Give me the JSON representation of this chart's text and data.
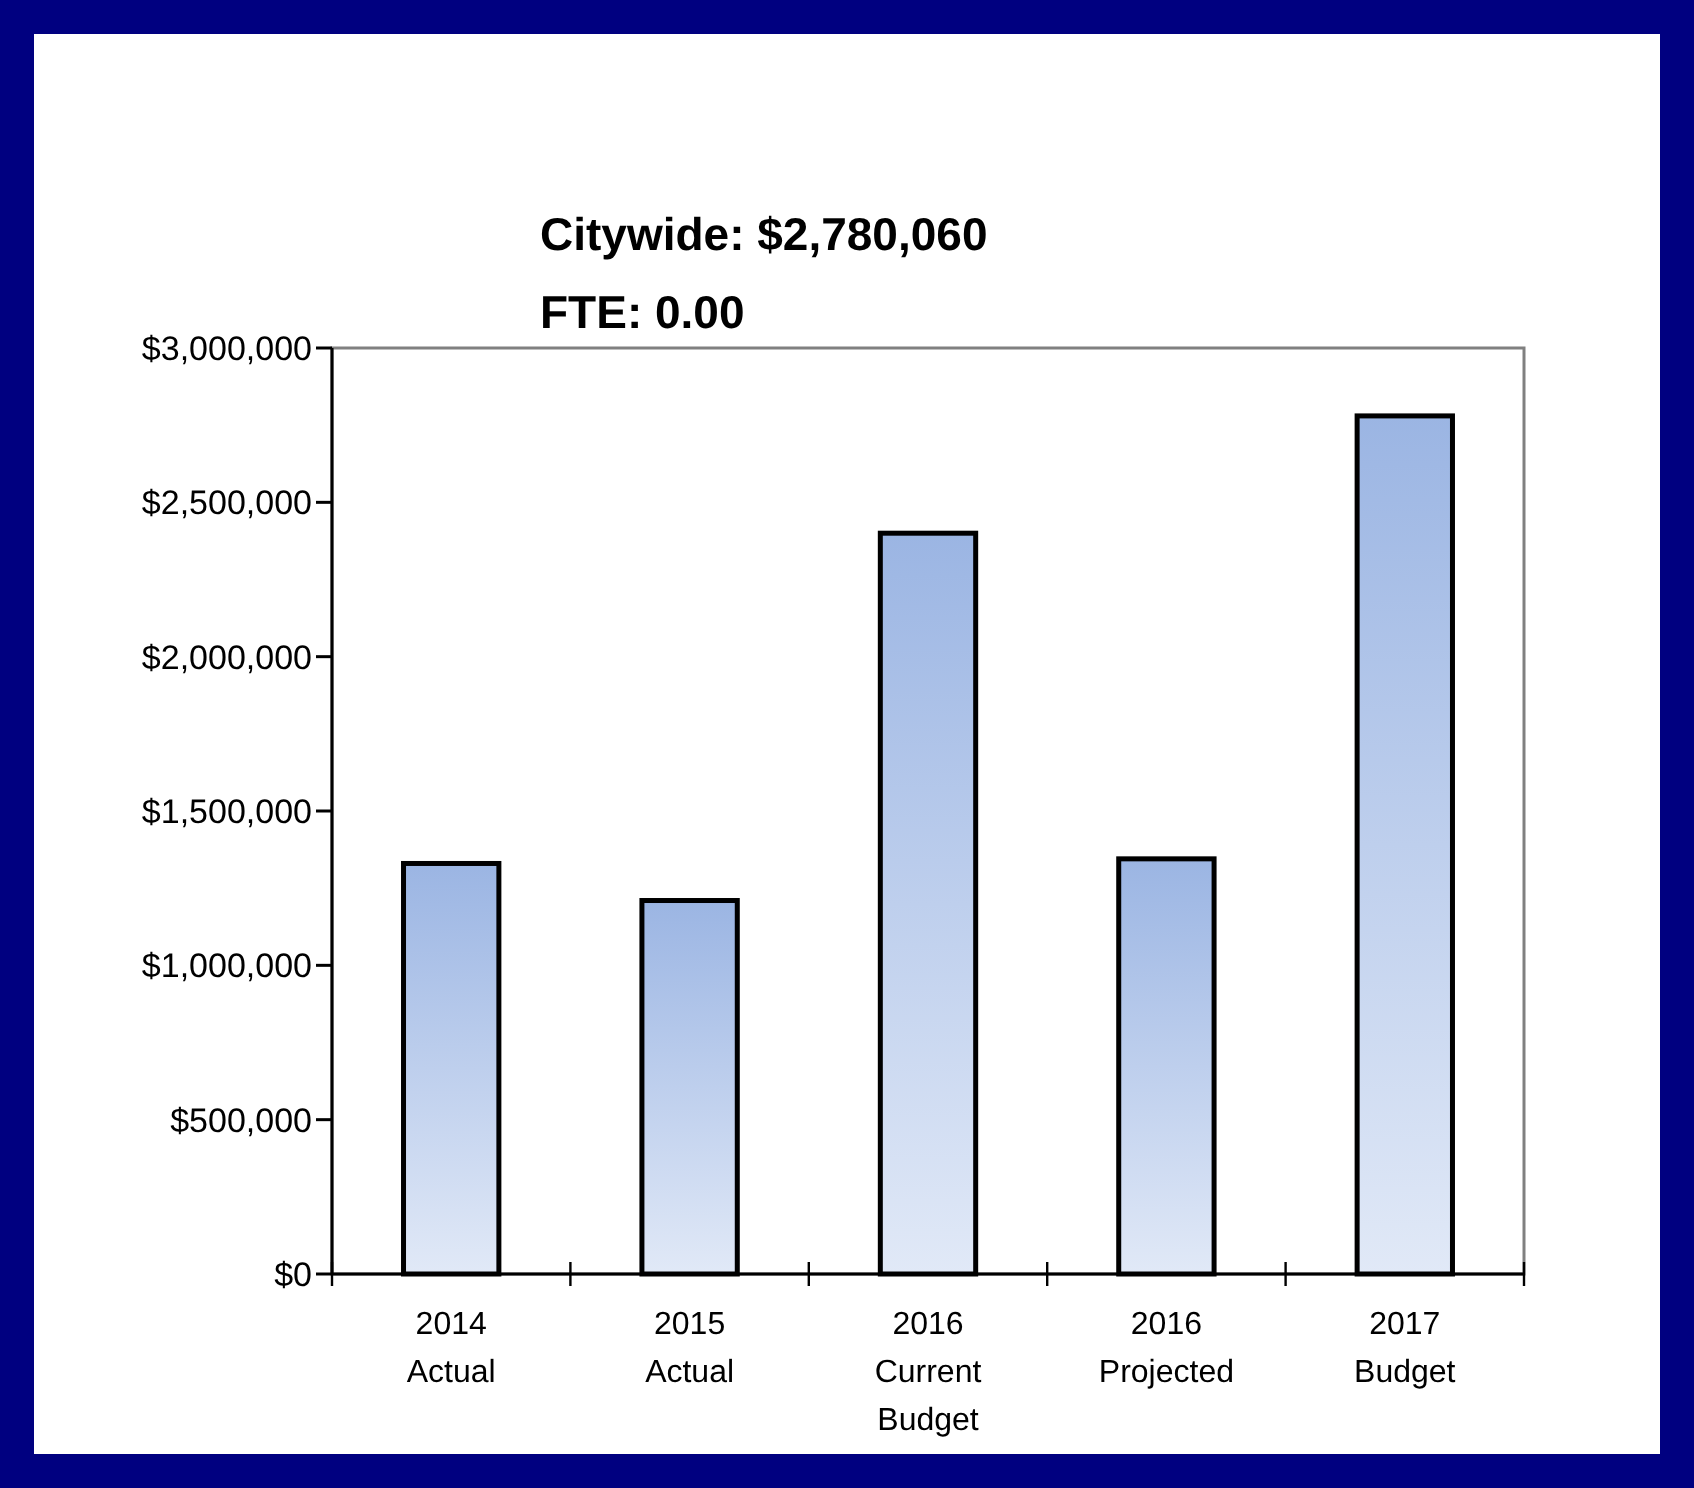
{
  "chart_data": {
    "type": "bar",
    "title": "Citywide: $2,780,060",
    "subtitle": "FTE: 0.00",
    "categories": [
      "2014\nActual",
      "2015\nActual",
      "2016\nCurrent\nBudget",
      "2016\nProjected",
      "2017\nBudget"
    ],
    "values": [
      1330000,
      1210000,
      2400000,
      1345000,
      2780000
    ],
    "color": "#9bb5e3",
    "ylim": [
      0,
      3000000
    ],
    "yticks": [
      {
        "value": 0,
        "label": "$0"
      },
      {
        "value": 500000,
        "label": "$500,000"
      },
      {
        "value": 1000000,
        "label": "$1,000,000"
      },
      {
        "value": 1500000,
        "label": "$1,500,000"
      },
      {
        "value": 2000000,
        "label": "$2,000,000"
      },
      {
        "value": 2500000,
        "label": "$2,500,000"
      },
      {
        "value": 3000000,
        "label": "$3,000,000"
      }
    ],
    "grid": false
  }
}
